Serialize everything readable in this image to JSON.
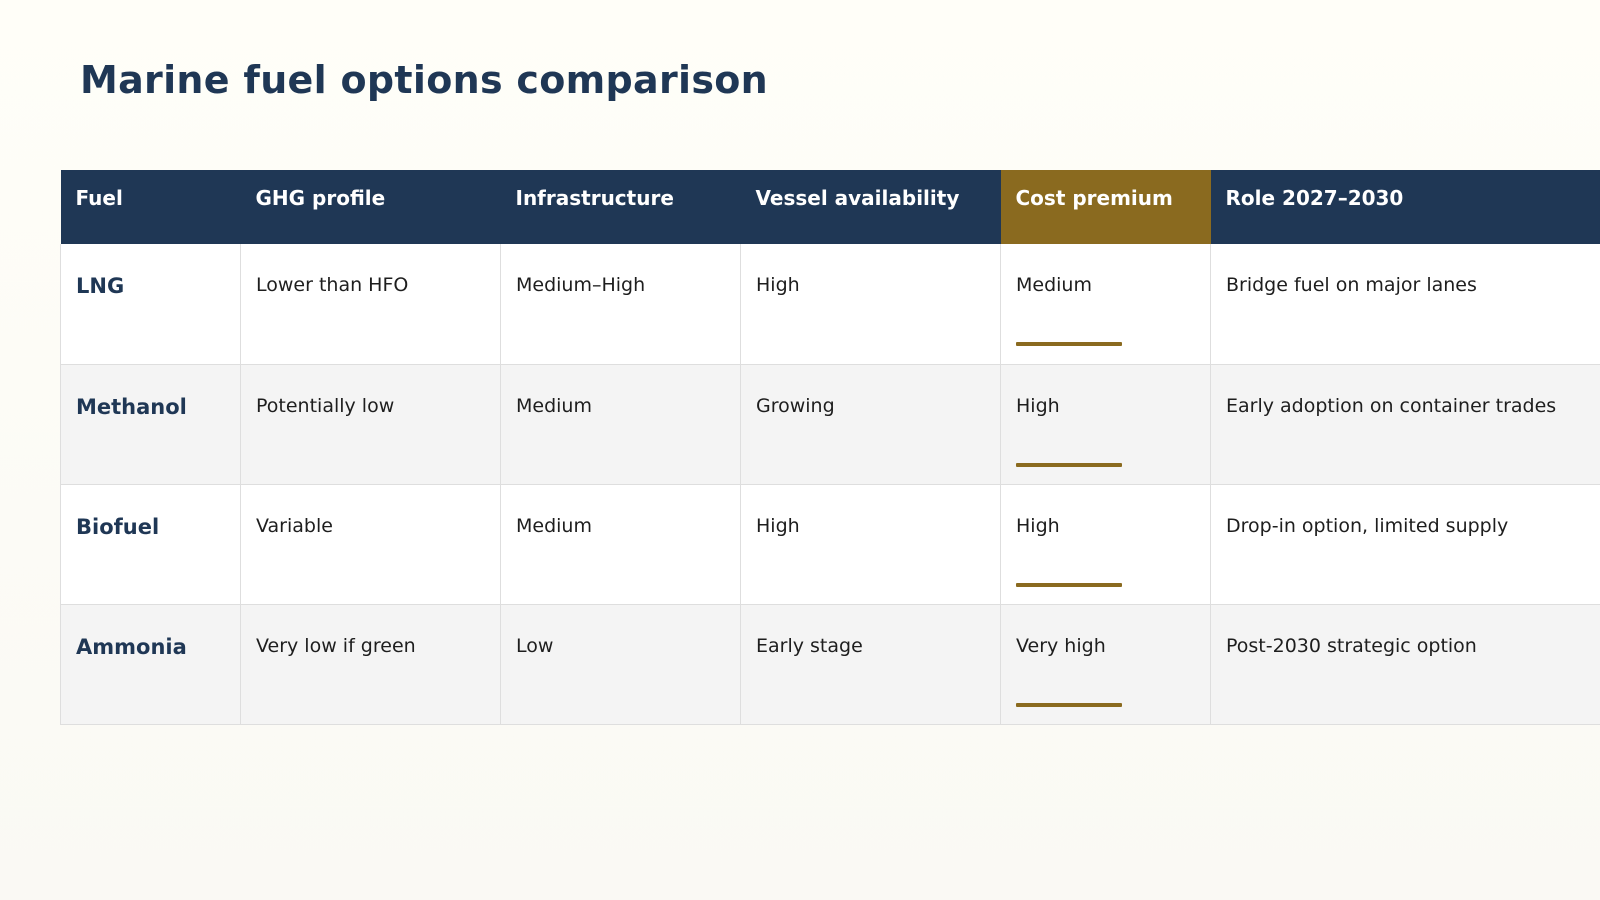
{
  "title": "Marine fuel options comparison",
  "accent_color": "#8a6a1f",
  "header_color": "#1f3755",
  "table": {
    "headers": [
      "Fuel",
      "GHG profile",
      "Infrastructure",
      "Vessel availability",
      "Cost premium",
      "Role 2027–2030"
    ],
    "highlight_column": "Cost premium",
    "rows": [
      {
        "fuel": "LNG",
        "ghg": "Lower than HFO",
        "infrastructure": "Medium–High",
        "vessels": "High",
        "cost": "Medium",
        "role": "Bridge fuel on major lanes"
      },
      {
        "fuel": "Methanol",
        "ghg": "Potentially low",
        "infrastructure": "Medium",
        "vessels": "Growing",
        "cost": "High",
        "role": "Early adoption on container trades"
      },
      {
        "fuel": "Biofuel",
        "ghg": "Variable",
        "infrastructure": "Medium",
        "vessels": "High",
        "cost": "High",
        "role": "Drop-in option, limited supply"
      },
      {
        "fuel": "Ammonia",
        "ghg": "Very low if green",
        "infrastructure": "Low",
        "vessels": "Early stage",
        "cost": "Very high",
        "role": "Post-2030 strategic option"
      }
    ]
  }
}
